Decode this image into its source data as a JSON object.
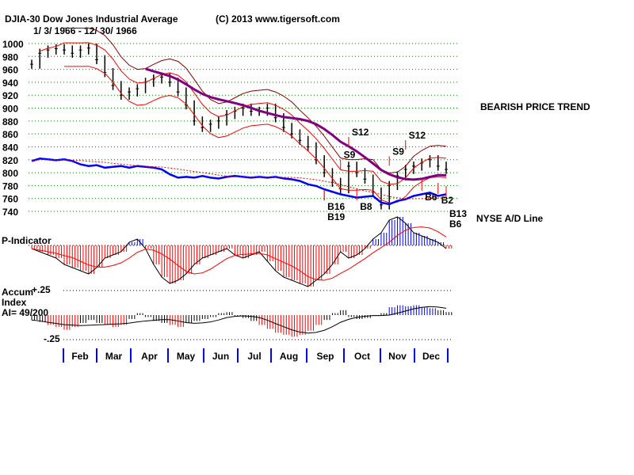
{
  "title": "DJIA-30  Dow Jones Industrial Average",
  "copyright": "(C) 2013 www.tigersoft.com",
  "date_range": "1/ 3/ 1966 - 12/ 30/ 1966",
  "trend_label": "BEARISH PRICE TREND",
  "ad_label": "NYSE A/D Line",
  "pind_label": "P-Indicator",
  "accum_label1": "Accum",
  "accum_label2": "Index",
  "ai_label": "AI= 49/200",
  "accum_plus": "+.25",
  "accum_minus": "-.25",
  "colors": {
    "price": "#000000",
    "band": "#ff0000",
    "outer_band": "#8b0000",
    "ma": "#800080",
    "ad": "#0000ff",
    "grid": "#008000",
    "neg": "#ff0000",
    "pos": "#0000ff"
  },
  "chart_data": {
    "type": "line",
    "title": "DJIA-30 Dow Jones Industrial Average",
    "ylim": [
      740,
      1000
    ],
    "yticks": [
      1000,
      980,
      960,
      940,
      920,
      900,
      880,
      860,
      840,
      820,
      800,
      780,
      760,
      740
    ],
    "months": [
      "Feb",
      "Mar",
      "Apr",
      "May",
      "Jun",
      "Jul",
      "Aug",
      "Sep",
      "Oct",
      "Nov",
      "Dec"
    ],
    "weekly_close": [
      968,
      985,
      990,
      992,
      990,
      985,
      990,
      993,
      975,
      955,
      935,
      920,
      925,
      930,
      940,
      945,
      948,
      940,
      925,
      905,
      880,
      870,
      875,
      880,
      890,
      895,
      900,
      895,
      895,
      900,
      885,
      870,
      860,
      850,
      840,
      820,
      800,
      785,
      775,
      810,
      800,
      790,
      770,
      750,
      780,
      795,
      805,
      810,
      815,
      820,
      810,
      805
    ],
    "ad_line": [
      92,
      95,
      94,
      93,
      94,
      92,
      88,
      86,
      87,
      84,
      85,
      86,
      84,
      86,
      85,
      84,
      82,
      76,
      72,
      73,
      72,
      74,
      72,
      71,
      73,
      74,
      73,
      72,
      73,
      72,
      73,
      71,
      70,
      68,
      64,
      62,
      58,
      55,
      52,
      50,
      48,
      49,
      50,
      42,
      40,
      44,
      46,
      50,
      52,
      54,
      50,
      52
    ],
    "p_indicator": [
      -10,
      -20,
      -30,
      -40,
      -60,
      -70,
      -80,
      -90,
      -70,
      -40,
      -30,
      -20,
      10,
      20,
      -10,
      -60,
      -100,
      -120,
      -110,
      -90,
      -60,
      -40,
      -30,
      -20,
      -10,
      -30,
      -40,
      -30,
      -20,
      -50,
      -80,
      -100,
      -110,
      -120,
      -130,
      -110,
      -90,
      -60,
      -20,
      -40,
      -30,
      -10,
      20,
      40,
      80,
      90,
      70,
      40,
      30,
      20,
      10,
      -10
    ],
    "accum_index": [
      -0.05,
      -0.07,
      -0.1,
      -0.12,
      -0.15,
      -0.12,
      -0.08,
      -0.05,
      -0.08,
      -0.1,
      -0.12,
      -0.1,
      -0.04,
      0.02,
      -0.02,
      -0.06,
      -0.08,
      -0.1,
      -0.12,
      -0.08,
      -0.06,
      -0.04,
      -0.02,
      0.02,
      0.03,
      -0.01,
      -0.03,
      -0.06,
      -0.1,
      -0.14,
      -0.18,
      -0.2,
      -0.22,
      -0.2,
      -0.16,
      -0.1,
      -0.05,
      0.02,
      0.05,
      -0.02,
      -0.04,
      -0.03,
      -0.01,
      0.02,
      0.08,
      0.1,
      0.09,
      0.1,
      0.08,
      0.07,
      0.05,
      0.03
    ],
    "signals": [
      {
        "label": "S9",
        "week": 38,
        "type": "sell"
      },
      {
        "label": "S12",
        "week": 39,
        "type": "sell"
      },
      {
        "label": "S9",
        "week": 44,
        "type": "sell"
      },
      {
        "label": "S12",
        "week": 46,
        "type": "sell"
      },
      {
        "label": "B16",
        "week": 36,
        "type": "buy"
      },
      {
        "label": "B19",
        "week": 36,
        "type": "buy"
      },
      {
        "label": "B8",
        "week": 40,
        "type": "buy"
      },
      {
        "label": "B6",
        "week": 48,
        "type": "buy"
      },
      {
        "label": "B2",
        "week": 50,
        "type": "buy"
      },
      {
        "label": "B13",
        "week": 51,
        "type": "buy"
      },
      {
        "label": "B6",
        "week": 51,
        "type": "buy"
      }
    ]
  }
}
